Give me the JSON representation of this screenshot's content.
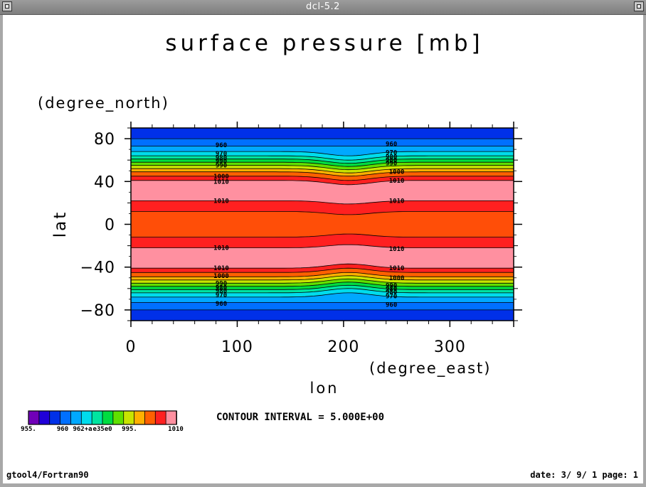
{
  "window": {
    "title": "dcl-5.2"
  },
  "chart_data": {
    "type": "heatmap",
    "title": "surface pressure [mb]",
    "xlabel": "lon",
    "xunit": "(degree_east)",
    "ylabel": "lat",
    "yunit": "(degree_north)",
    "xlim": [
      0,
      360
    ],
    "ylim": [
      -90,
      90
    ],
    "xticks": [
      0,
      100,
      200,
      300
    ],
    "yticks": [
      80,
      40,
      0,
      -40,
      -80
    ],
    "xtick_labels": [
      "0",
      "100",
      "200",
      "300"
    ],
    "ytick_labels": [
      "80",
      "40",
      "0",
      "−40",
      "−80"
    ],
    "contour_interval_text": "CONTOUR INTERVAL = 5.000E+00",
    "colorbar": {
      "colors": [
        "#7000b8",
        "#2000d8",
        "#0030e8",
        "#0070ff",
        "#00a8ff",
        "#00dcec",
        "#00e4a0",
        "#00dc40",
        "#60e000",
        "#c8e400",
        "#ffb000",
        "#ff6000",
        "#ff2020",
        "#ff90a0"
      ],
      "labels": [
        "955.",
        "960",
        "962+a",
        "e35e0",
        "995.",
        "1010"
      ]
    },
    "bands": [
      {
        "lat_top": 90,
        "lat_bottom": 80,
        "color": "#0030e8"
      },
      {
        "lat_top": 80,
        "lat_bottom": 73,
        "color": "#0070ff"
      },
      {
        "lat_top": 73,
        "lat_bottom": 68,
        "color": "#00a8ff"
      },
      {
        "lat_top": 68,
        "lat_bottom": 64,
        "color": "#00dcec"
      },
      {
        "lat_top": 64,
        "lat_bottom": 61,
        "color": "#00e4a0"
      },
      {
        "lat_top": 61,
        "lat_bottom": 58,
        "color": "#00dc40"
      },
      {
        "lat_top": 58,
        "lat_bottom": 55,
        "color": "#60e000"
      },
      {
        "lat_top": 55,
        "lat_bottom": 52,
        "color": "#c8e400"
      },
      {
        "lat_top": 52,
        "lat_bottom": 49,
        "color": "#ffb000"
      },
      {
        "lat_top": 49,
        "lat_bottom": 45,
        "color": "#ff6000"
      },
      {
        "lat_top": 45,
        "lat_bottom": 41,
        "color": "#ff2020"
      },
      {
        "lat_top": 41,
        "lat_bottom": 22,
        "color": "#ff90a0"
      },
      {
        "lat_top": 22,
        "lat_bottom": 12,
        "color": "#ff2020"
      },
      {
        "lat_top": 12,
        "lat_bottom": -12,
        "color": "#ff4e08"
      },
      {
        "lat_top": -12,
        "lat_bottom": -22,
        "color": "#ff2020"
      },
      {
        "lat_top": -22,
        "lat_bottom": -41,
        "color": "#ff90a0"
      },
      {
        "lat_top": -41,
        "lat_bottom": -45,
        "color": "#ff2020"
      },
      {
        "lat_top": -45,
        "lat_bottom": -49,
        "color": "#ff6000"
      },
      {
        "lat_top": -49,
        "lat_bottom": -52,
        "color": "#ffb000"
      },
      {
        "lat_top": -52,
        "lat_bottom": -55,
        "color": "#c8e400"
      },
      {
        "lat_top": -55,
        "lat_bottom": -58,
        "color": "#60e000"
      },
      {
        "lat_top": -58,
        "lat_bottom": -61,
        "color": "#00dc40"
      },
      {
        "lat_top": -61,
        "lat_bottom": -64,
        "color": "#00e4a0"
      },
      {
        "lat_top": -64,
        "lat_bottom": -68,
        "color": "#00dcec"
      },
      {
        "lat_top": -68,
        "lat_bottom": -73,
        "color": "#00a8ff"
      },
      {
        "lat_top": -73,
        "lat_bottom": -80,
        "color": "#0070ff"
      },
      {
        "lat_top": -80,
        "lat_bottom": -90,
        "color": "#0030e8"
      }
    ],
    "contour_labels": [
      {
        "lon": 85,
        "lat": 74,
        "text": "960"
      },
      {
        "lon": 85,
        "lat": 66,
        "text": "970"
      },
      {
        "lon": 85,
        "lat": 62,
        "text": "980"
      },
      {
        "lon": 85,
        "lat": 59,
        "text": "990"
      },
      {
        "lon": 85,
        "lat": 55,
        "text": "990"
      },
      {
        "lon": 85,
        "lat": 45,
        "text": "1000"
      },
      {
        "lon": 85,
        "lat": 40,
        "text": "1010"
      },
      {
        "lon": 85,
        "lat": 22,
        "text": "1010"
      },
      {
        "lon": 85,
        "lat": -22,
        "text": "1010"
      },
      {
        "lon": 85,
        "lat": -41,
        "text": "1010"
      },
      {
        "lon": 85,
        "lat": -48,
        "text": "1000"
      },
      {
        "lon": 85,
        "lat": -55,
        "text": "990"
      },
      {
        "lon": 85,
        "lat": -59,
        "text": "980"
      },
      {
        "lon": 85,
        "lat": -62,
        "text": "980"
      },
      {
        "lon": 85,
        "lat": -66,
        "text": "970"
      },
      {
        "lon": 85,
        "lat": -74,
        "text": "960"
      },
      {
        "lon": 245,
        "lat": 75,
        "text": "960"
      },
      {
        "lon": 245,
        "lat": 67,
        "text": "970"
      },
      {
        "lon": 245,
        "lat": 63,
        "text": "980"
      },
      {
        "lon": 245,
        "lat": 60,
        "text": "980"
      },
      {
        "lon": 245,
        "lat": 57,
        "text": "990"
      },
      {
        "lon": 250,
        "lat": 49,
        "text": "1000"
      },
      {
        "lon": 250,
        "lat": 41,
        "text": "1010"
      },
      {
        "lon": 250,
        "lat": 22,
        "text": "1010"
      },
      {
        "lon": 250,
        "lat": -23,
        "text": "1010"
      },
      {
        "lon": 250,
        "lat": -41,
        "text": "1010"
      },
      {
        "lon": 250,
        "lat": -50,
        "text": "1000"
      },
      {
        "lon": 245,
        "lat": -57,
        "text": "990"
      },
      {
        "lon": 245,
        "lat": -60,
        "text": "980"
      },
      {
        "lon": 245,
        "lat": -63,
        "text": "980"
      },
      {
        "lon": 245,
        "lat": -67,
        "text": "970"
      },
      {
        "lon": 245,
        "lat": -75,
        "text": "960"
      }
    ]
  },
  "footer": {
    "left": "gtool4/Fortran90",
    "right": "date: 3/ 9/ 1 page: 1"
  }
}
